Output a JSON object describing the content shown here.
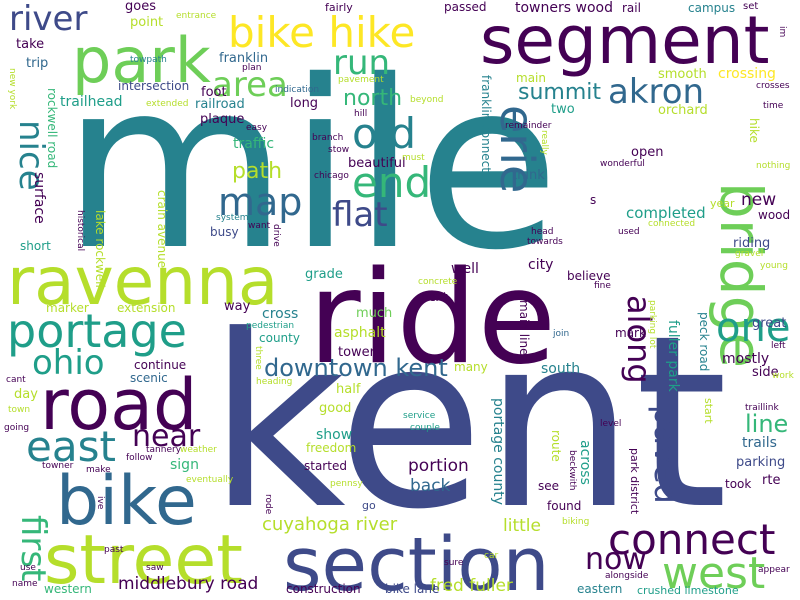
{
  "palette": {
    "purple_dark": "#440154",
    "indigo": "#3e4a89",
    "blue": "#31688e",
    "teal": "#26828e",
    "teal_green": "#1f9e89",
    "green": "#35b779",
    "lime": "#6ece58",
    "yellow_green": "#b5de2b",
    "yellow": "#fde725"
  },
  "words": [
    {
      "text": "mile",
      "color": "#26828e",
      "rot": 0
    },
    {
      "text": "kent",
      "color": "#3e4a89",
      "rot": 0
    },
    {
      "text": "ride",
      "color": "#440154",
      "rot": 0
    },
    {
      "text": "section",
      "color": "#3e4a89",
      "rot": 0
    },
    {
      "text": "street",
      "color": "#b5de2b",
      "rot": 0
    },
    {
      "text": "bike",
      "color": "#31688e",
      "rot": 0
    },
    {
      "text": "road",
      "color": "#440154",
      "rot": 0
    },
    {
      "text": "ravenna",
      "color": "#b5de2b",
      "rot": 0
    },
    {
      "text": "portage",
      "color": "#1f9e89",
      "rot": 0
    },
    {
      "text": "segment",
      "color": "#440154",
      "rot": 0
    },
    {
      "text": "park",
      "color": "#6ece58",
      "rot": 0
    },
    {
      "text": "bike hike",
      "color": "#fde725",
      "rot": 0
    },
    {
      "text": "bridge",
      "color": "#6ece58",
      "rot": 90
    },
    {
      "text": "connect",
      "color": "#440154",
      "rot": 0
    },
    {
      "text": "west",
      "color": "#6ece58",
      "rot": 0
    },
    {
      "text": "east",
      "color": "#26828e",
      "rot": 0
    },
    {
      "text": "first",
      "color": "#35b779",
      "rot": 90
    },
    {
      "text": "nice",
      "color": "#26828e",
      "rot": 90
    },
    {
      "text": "river",
      "color": "#3e4a89",
      "rot": 0
    },
    {
      "text": "ohio",
      "color": "#1f9e89",
      "rot": 0
    },
    {
      "text": "area",
      "color": "#6ece58",
      "rot": 0
    },
    {
      "text": "run",
      "color": "#35b779",
      "rot": 0
    },
    {
      "text": "end",
      "color": "#35b779",
      "rot": 0
    },
    {
      "text": "old",
      "color": "#26828e",
      "rot": 0
    },
    {
      "text": "map",
      "color": "#31688e",
      "rot": 0
    },
    {
      "text": "flat",
      "color": "#3e4a89",
      "rot": 0
    },
    {
      "text": "erie",
      "color": "#31688e",
      "rot": 90
    },
    {
      "text": "akron",
      "color": "#31688e",
      "rot": 0
    },
    {
      "text": "one",
      "color": "#1f9e89",
      "rot": 0
    },
    {
      "text": "along",
      "color": "#440154",
      "rot": 90
    },
    {
      "text": "paved",
      "color": "#3e4a89",
      "rot": 90
    },
    {
      "text": "near",
      "color": "#440154",
      "rot": 0
    },
    {
      "text": "downtown kent",
      "color": "#31688e",
      "rot": 0
    },
    {
      "text": "now",
      "color": "#440154",
      "rot": 0
    },
    {
      "text": "line",
      "color": "#35b779",
      "rot": 0
    },
    {
      "text": "north",
      "color": "#35b779",
      "rot": 0
    },
    {
      "text": "summit",
      "color": "#26828e",
      "rot": 0
    },
    {
      "text": "path",
      "color": "#b5de2b",
      "rot": 0
    },
    {
      "text": "cuyahoga river",
      "color": "#b5de2b",
      "rot": 0
    },
    {
      "text": "middlebury road",
      "color": "#440154",
      "rot": 0
    },
    {
      "text": "fred fuller",
      "color": "#b5de2b",
      "rot": 0
    },
    {
      "text": "back",
      "color": "#31688e",
      "rot": 0
    },
    {
      "text": "portion",
      "color": "#440154",
      "rot": 0
    },
    {
      "text": "little",
      "color": "#b5de2b",
      "rot": 0
    },
    {
      "text": "across",
      "color": "#1f9e89",
      "rot": 90
    },
    {
      "text": "portage county",
      "color": "#26828e",
      "rot": 90
    },
    {
      "text": "fuller park",
      "color": "#1f9e89",
      "rot": 90
    },
    {
      "text": "completed",
      "color": "#1f9e89",
      "rot": 0
    },
    {
      "text": "new",
      "color": "#440154",
      "rot": 0
    },
    {
      "text": "great",
      "color": "#3e4a89",
      "rot": 0
    },
    {
      "text": "mostly",
      "color": "#440154",
      "rot": 0
    },
    {
      "text": "trails",
      "color": "#31688e",
      "rot": 0
    },
    {
      "text": "parking",
      "color": "#3e4a89",
      "rot": 0
    },
    {
      "text": "crossing",
      "color": "#fde725",
      "rot": 0
    },
    {
      "text": "towners wood",
      "color": "#440154",
      "rot": 0
    },
    {
      "text": "trailhead",
      "color": "#1f9e89",
      "rot": 0
    },
    {
      "text": "surface",
      "color": "#440154",
      "rot": 90
    },
    {
      "text": "traffic",
      "color": "#35b779",
      "rot": 0
    },
    {
      "text": "cross",
      "color": "#26828e",
      "rot": 0
    },
    {
      "text": "asphalt",
      "color": "#b5de2b",
      "rot": 0
    },
    {
      "text": "city",
      "color": "#440154",
      "rot": 0
    },
    {
      "text": "well",
      "color": "#440154",
      "rot": 0
    },
    {
      "text": "south",
      "color": "#26828e",
      "rot": 0
    },
    {
      "text": "sign",
      "color": "#35b779",
      "rot": 0
    },
    {
      "text": "show",
      "color": "#1f9e89",
      "rot": 0
    },
    {
      "text": "good",
      "color": "#b5de2b",
      "rot": 0
    },
    {
      "text": "open",
      "color": "#440154",
      "rot": 0
    },
    {
      "text": "riding",
      "color": "#3e4a89",
      "rot": 0
    },
    {
      "text": "side",
      "color": "#440154",
      "rot": 0
    },
    {
      "text": "take",
      "color": "#440154",
      "rot": 0
    },
    {
      "text": "trip",
      "color": "#31688e",
      "rot": 0
    },
    {
      "text": "goes",
      "color": "#440154",
      "rot": 0
    },
    {
      "text": "point",
      "color": "#b5de2b",
      "rot": 0
    },
    {
      "text": "franklin",
      "color": "#31688e",
      "rot": 0
    },
    {
      "text": "foot",
      "color": "#440154",
      "rot": 0
    },
    {
      "text": "long",
      "color": "#440154",
      "rot": 0
    },
    {
      "text": "railroad",
      "color": "#26828e",
      "rot": 0
    },
    {
      "text": "plaque",
      "color": "#440154",
      "rot": 0
    },
    {
      "text": "intersection",
      "color": "#3e4a89",
      "rot": 0
    },
    {
      "text": "beautiful",
      "color": "#440154",
      "rot": 0
    },
    {
      "text": "think",
      "color": "#31688e",
      "rot": 0
    },
    {
      "text": "two",
      "color": "#1f9e89",
      "rot": 0
    },
    {
      "text": "smooth",
      "color": "#b5de2b",
      "rot": 0
    },
    {
      "text": "orchard",
      "color": "#b5de2b",
      "rot": 0
    },
    {
      "text": "main",
      "color": "#b5de2b",
      "rot": 0
    },
    {
      "text": "grade",
      "color": "#1f9e89",
      "rot": 0
    },
    {
      "text": "busy",
      "color": "#3e4a89",
      "rot": 0
    },
    {
      "text": "crain avenue",
      "color": "#b5de2b",
      "rot": 90
    },
    {
      "text": "lake rockwell",
      "color": "#b5de2b",
      "rot": 90
    },
    {
      "text": "rockwell road",
      "color": "#35b779",
      "rot": 90
    },
    {
      "text": "franklin connector",
      "color": "#26828e",
      "rot": 90
    },
    {
      "text": "much",
      "color": "#6ece58",
      "rot": 0
    },
    {
      "text": "tower",
      "color": "#440154",
      "rot": 0
    },
    {
      "text": "county",
      "color": "#1f9e89",
      "rot": 0
    },
    {
      "text": "half",
      "color": "#b5de2b",
      "rot": 0
    },
    {
      "text": "way",
      "color": "#440154",
      "rot": 0
    },
    {
      "text": "extension",
      "color": "#b5de2b",
      "rot": 0
    },
    {
      "text": "continue",
      "color": "#440154",
      "rot": 0
    },
    {
      "text": "scenic",
      "color": "#31688e",
      "rot": 0
    },
    {
      "text": "day",
      "color": "#b5de2b",
      "rot": 0
    },
    {
      "text": "marker",
      "color": "#b5de2b",
      "rot": 0
    },
    {
      "text": "short",
      "color": "#1f9e89",
      "rot": 0
    },
    {
      "text": "started",
      "color": "#440154",
      "rot": 0
    },
    {
      "text": "freedom",
      "color": "#b5de2b",
      "rot": 0
    },
    {
      "text": "construction",
      "color": "#440154",
      "rot": 0
    },
    {
      "text": "bike lane",
      "color": "#3e4a89",
      "rot": 0
    },
    {
      "text": "western",
      "color": "#35b779",
      "rot": 0
    },
    {
      "text": "eastern",
      "color": "#26828e",
      "rot": 0
    },
    {
      "text": "crushed limestone",
      "color": "#1f9e89",
      "rot": 0
    },
    {
      "text": "found",
      "color": "#440154",
      "rot": 0
    },
    {
      "text": "see",
      "color": "#440154",
      "rot": 0
    },
    {
      "text": "route",
      "color": "#b5de2b",
      "rot": 90
    },
    {
      "text": "main line",
      "color": "#440154",
      "rot": 90
    },
    {
      "text": "peck road",
      "color": "#26828e",
      "rot": 90
    },
    {
      "text": "park district",
      "color": "#440154",
      "rot": 90
    },
    {
      "text": "start",
      "color": "#b5de2b",
      "rot": 90
    },
    {
      "text": "rte",
      "color": "#440154",
      "rot": 0
    },
    {
      "text": "took",
      "color": "#440154",
      "rot": 0
    },
    {
      "text": "wood",
      "color": "#440154",
      "rot": 0
    },
    {
      "text": "hike",
      "color": "#b5de2b",
      "rot": 90
    },
    {
      "text": "year",
      "color": "#b5de2b",
      "rot": 0
    },
    {
      "text": "next",
      "color": "#440154",
      "rot": 0
    },
    {
      "text": "believe",
      "color": "#440154",
      "rot": 0
    },
    {
      "text": "mark",
      "color": "#440154",
      "rot": 0
    },
    {
      "text": "many",
      "color": "#b5de2b",
      "rot": 0
    },
    {
      "text": "passed",
      "color": "#440154",
      "rot": 0
    },
    {
      "text": "rail",
      "color": "#440154",
      "rot": 0
    },
    {
      "text": "campus",
      "color": "#26828e",
      "rot": 0
    },
    {
      "text": "set",
      "color": "#440154",
      "rot": 0
    },
    {
      "text": "fairly",
      "color": "#440154",
      "rot": 0
    },
    {
      "text": "entrance",
      "color": "#b5de2b",
      "rot": 0
    },
    {
      "text": "towpath",
      "color": "#26828e",
      "rot": 0
    },
    {
      "text": "plan",
      "color": "#440154",
      "rot": 0
    },
    {
      "text": "indication",
      "color": "#31688e",
      "rot": 0
    },
    {
      "text": "beyond",
      "color": "#b5de2b",
      "rot": 0
    },
    {
      "text": "pavement",
      "color": "#b5de2b",
      "rot": 0
    },
    {
      "text": "remainder",
      "color": "#440154",
      "rot": 0
    },
    {
      "text": "really",
      "color": "#b5de2b",
      "rot": 90
    },
    {
      "text": "crosses",
      "color": "#440154",
      "rot": 0
    },
    {
      "text": "time",
      "color": "#440154",
      "rot": 0
    },
    {
      "text": "nothing",
      "color": "#b5de2b",
      "rot": 0
    },
    {
      "text": "wonderful",
      "color": "#440154",
      "rot": 0
    },
    {
      "text": "concrete",
      "color": "#b5de2b",
      "rot": 0
    },
    {
      "text": "pedestrian",
      "color": "#1f9e89",
      "rot": 0
    },
    {
      "text": "fine",
      "color": "#440154",
      "rot": 0
    },
    {
      "text": "join",
      "color": "#31688e",
      "rot": 0
    },
    {
      "text": "parking lot",
      "color": "#b5de2b",
      "rot": 90
    },
    {
      "text": "left",
      "color": "#440154",
      "rot": 0
    },
    {
      "text": "work",
      "color": "#b5de2b",
      "rot": 0
    },
    {
      "text": "traillink",
      "color": "#440154",
      "rot": 0
    },
    {
      "text": "appear",
      "color": "#440154",
      "rot": 0
    },
    {
      "text": "alongside",
      "color": "#440154",
      "rot": 0
    },
    {
      "text": "level",
      "color": "#440154",
      "rot": 0
    },
    {
      "text": "service",
      "color": "#1f9e89",
      "rot": 0
    },
    {
      "text": "couple",
      "color": "#1f9e89",
      "rot": 0
    },
    {
      "text": "sure",
      "color": "#440154",
      "rot": 0
    },
    {
      "text": "car",
      "color": "#b5de2b",
      "rot": 0
    },
    {
      "text": "biking",
      "color": "#b5de2b",
      "rot": 0
    },
    {
      "text": "beckwith",
      "color": "#440154",
      "rot": 90
    },
    {
      "text": "ive",
      "color": "#440154",
      "rot": 90
    },
    {
      "text": "rode",
      "color": "#440154",
      "rot": 90
    },
    {
      "text": "pennsy",
      "color": "#b5de2b",
      "rot": 0
    },
    {
      "text": "go",
      "color": "#3e4a89",
      "rot": 0
    },
    {
      "text": "eventually",
      "color": "#b5de2b",
      "rot": 0
    },
    {
      "text": "weather",
      "color": "#b5de2b",
      "rot": 0
    },
    {
      "text": "saw",
      "color": "#440154",
      "rot": 0
    },
    {
      "text": "past",
      "color": "#440154",
      "rot": 0
    },
    {
      "text": "make",
      "color": "#440154",
      "rot": 0
    },
    {
      "text": "tannery",
      "color": "#440154",
      "rot": 0
    },
    {
      "text": "follow",
      "color": "#440154",
      "rot": 0
    },
    {
      "text": "towner",
      "color": "#440154",
      "rot": 0
    },
    {
      "text": "use",
      "color": "#440154",
      "rot": 0
    },
    {
      "text": "name",
      "color": "#440154",
      "rot": 0
    },
    {
      "text": "going",
      "color": "#440154",
      "rot": 0
    },
    {
      "text": "town",
      "color": "#b5de2b",
      "rot": 0
    },
    {
      "text": "cant",
      "color": "#440154",
      "rot": 0
    },
    {
      "text": "heading",
      "color": "#b5de2b",
      "rot": 0
    },
    {
      "text": "three",
      "color": "#b5de2b",
      "rot": 90
    },
    {
      "text": "system",
      "color": "#26828e",
      "rot": 0
    },
    {
      "text": "want",
      "color": "#440154",
      "rot": 0
    },
    {
      "text": "historical",
      "color": "#440154",
      "rot": 90
    },
    {
      "text": "new york",
      "color": "#b5de2b",
      "rot": 90
    },
    {
      "text": "extended",
      "color": "#b5de2b",
      "rot": 0
    },
    {
      "text": "easy",
      "color": "#440154",
      "rot": 0
    },
    {
      "text": "hill",
      "color": "#440154",
      "rot": 0
    },
    {
      "text": "branch",
      "color": "#440154",
      "rot": 0
    },
    {
      "text": "stow",
      "color": "#440154",
      "rot": 0
    },
    {
      "text": "chicago",
      "color": "#440154",
      "rot": 0
    },
    {
      "text": "drive",
      "color": "#440154",
      "rot": 90
    },
    {
      "text": "must",
      "color": "#b5de2b",
      "rot": 0
    },
    {
      "text": "head",
      "color": "#440154",
      "rot": 0
    },
    {
      "text": "towards",
      "color": "#440154",
      "rot": 0
    },
    {
      "text": "used",
      "color": "#440154",
      "rot": 0
    },
    {
      "text": "connected",
      "color": "#b5de2b",
      "rot": 0
    },
    {
      "text": "gravel",
      "color": "#b5de2b",
      "rot": 0
    },
    {
      "text": "young",
      "color": "#b5de2b",
      "rot": 0
    },
    {
      "text": "s",
      "color": "#440154",
      "rot": 0
    },
    {
      "text": "im",
      "color": "#440154",
      "rot": 90
    }
  ]
}
